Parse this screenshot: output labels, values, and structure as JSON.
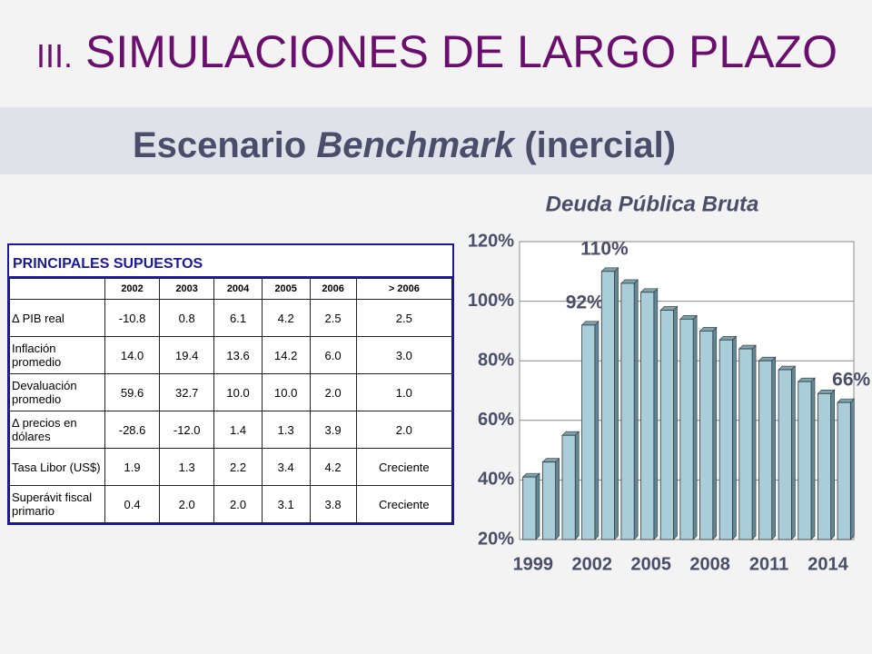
{
  "header": {
    "number": "III.",
    "title": "SIMULACIONES DE LARGO PLAZO",
    "subtitle": [
      "Escenario ",
      "Benchmark",
      " (inercial)"
    ]
  },
  "table": {
    "title": "PRINCIPALES SUPUESTOS",
    "columns": [
      "2002",
      "2003",
      "2004",
      "2005",
      "2006",
      "> 2006"
    ],
    "rows": [
      [
        "Δ PIB real",
        "-10.8",
        "0.8",
        "6.1",
        "4.2",
        "2.5",
        "2.5"
      ],
      [
        "Inflación promedio",
        "14.0",
        "19.4",
        "13.6",
        "14.2",
        "6.0",
        "3.0"
      ],
      [
        "Devaluación promedio",
        "59.6",
        "32.7",
        "10.0",
        "10.0",
        "2.0",
        "1.0"
      ],
      [
        "Δ precios en dólares",
        "-28.6",
        "-12.0",
        "1.4",
        "1.3",
        "3.9",
        "2.0"
      ],
      [
        "Tasa Libor (US$)",
        "1.9",
        "1.3",
        "2.2",
        "3.4",
        "4.2",
        "Creciente"
      ],
      [
        "Superávit fiscal primario",
        "0.4",
        "2.0",
        "2.0",
        "3.1",
        "3.8",
        "Creciente"
      ]
    ]
  },
  "chart_data": {
    "type": "bar",
    "title": "Deuda Pública Bruta",
    "categories": [
      "1999",
      null,
      null,
      "2002",
      null,
      null,
      "2005",
      null,
      null,
      "2008",
      null,
      null,
      "2011",
      null,
      null,
      "2014",
      null
    ],
    "values": [
      41,
      46,
      55,
      92,
      110,
      106,
      103,
      97,
      94,
      90,
      87,
      84,
      80,
      77,
      73,
      69,
      66
    ],
    "value_labels": [
      null,
      null,
      null,
      "92%",
      "110%",
      null,
      null,
      null,
      null,
      null,
      null,
      null,
      null,
      null,
      null,
      null,
      "66%"
    ],
    "color": "#a9cdd9",
    "ylim": [
      20,
      120
    ],
    "yticks": [
      {
        "value": 20,
        "label": "20%"
      },
      {
        "value": 40,
        "label": "40%"
      },
      {
        "value": 60,
        "label": "60%"
      },
      {
        "value": 80,
        "label": "80%"
      },
      {
        "value": 100,
        "label": "100%"
      },
      {
        "value": 120,
        "label": "120%"
      }
    ],
    "grid": true
  }
}
